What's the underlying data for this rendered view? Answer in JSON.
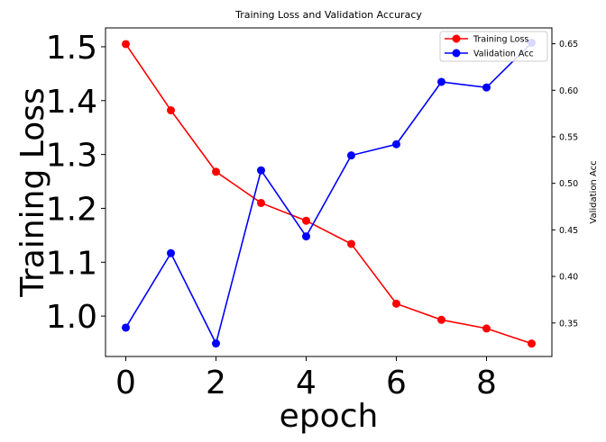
{
  "chart_data": {
    "type": "line",
    "title": "Training Loss and Validation Accuracy",
    "xlabel": "epoch",
    "ylabel_left": "Training Loss",
    "ylabel_right": "Validation Acc",
    "x": [
      0,
      1,
      2,
      3,
      4,
      5,
      6,
      7,
      8,
      9
    ],
    "xlim": [
      -0.45,
      9.45
    ],
    "ylim_left": [
      0.925,
      1.535
    ],
    "ylim_right": [
      0.314,
      0.667
    ],
    "x_ticks": [
      0,
      2,
      4,
      6,
      8
    ],
    "x_tick_labels": [
      "0",
      "2",
      "4",
      "6",
      "8"
    ],
    "y_left_ticks": [
      1.0,
      1.1,
      1.2,
      1.3,
      1.4,
      1.5
    ],
    "y_left_tick_labels": [
      "1.0",
      "1.1",
      "1.2",
      "1.3",
      "1.4",
      "1.5"
    ],
    "y_right_ticks": [
      0.35,
      0.4,
      0.45,
      0.5,
      0.55,
      0.6,
      0.65
    ],
    "y_right_tick_labels": [
      "0.35",
      "0.40",
      "0.45",
      "0.50",
      "0.55",
      "0.60",
      "0.65"
    ],
    "legend_position": "top-right",
    "grid": false,
    "series": [
      {
        "name": "Training Loss",
        "axis": "left",
        "color": "#ff0000",
        "values": [
          1.505,
          1.382,
          1.268,
          1.21,
          1.177,
          1.134,
          1.023,
          0.993,
          0.977,
          0.949
        ]
      },
      {
        "name": "Validation Acc",
        "axis": "right",
        "color": "#0000ff",
        "values": [
          0.345,
          0.425,
          0.328,
          0.514,
          0.443,
          0.53,
          0.542,
          0.609,
          0.603,
          0.651
        ]
      }
    ]
  }
}
